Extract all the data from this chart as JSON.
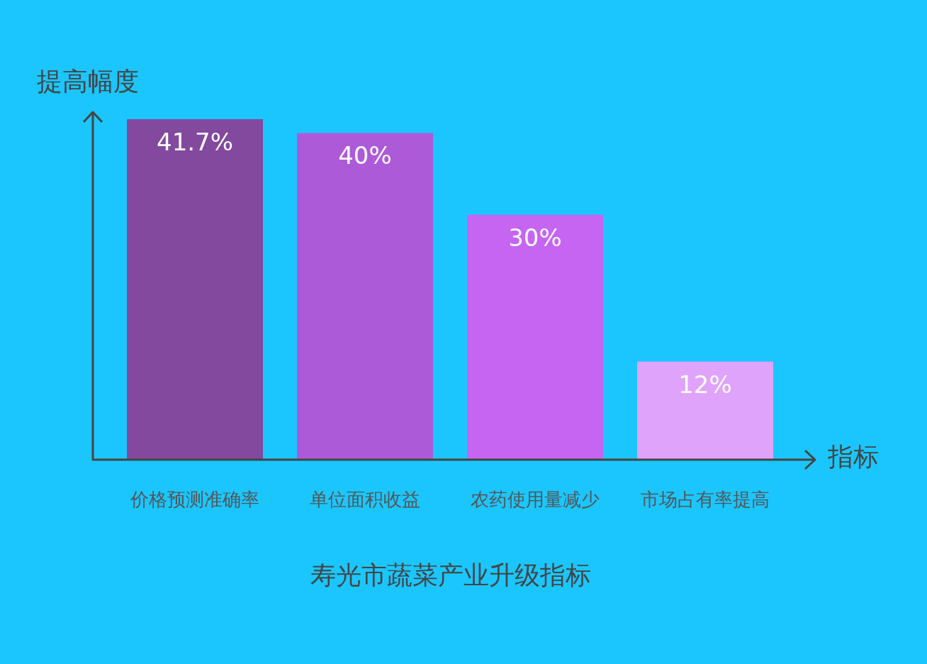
{
  "chart_data": {
    "type": "bar",
    "title": "寿光市蔬菜产业升级指标",
    "xlabel": "指标",
    "ylabel": "提高幅度",
    "categories": [
      "价格预测准确率",
      "单位面积收益",
      "农药使用量减少",
      "市场占有率提高"
    ],
    "values": [
      41.7,
      40,
      30,
      12
    ],
    "colors": [
      "#82499e",
      "#ad5ad9",
      "#c565f2",
      "#e0a3fc"
    ],
    "value_labels": [
      "41.7%",
      "40%",
      "30%",
      "12%"
    ],
    "legend": false
  }
}
